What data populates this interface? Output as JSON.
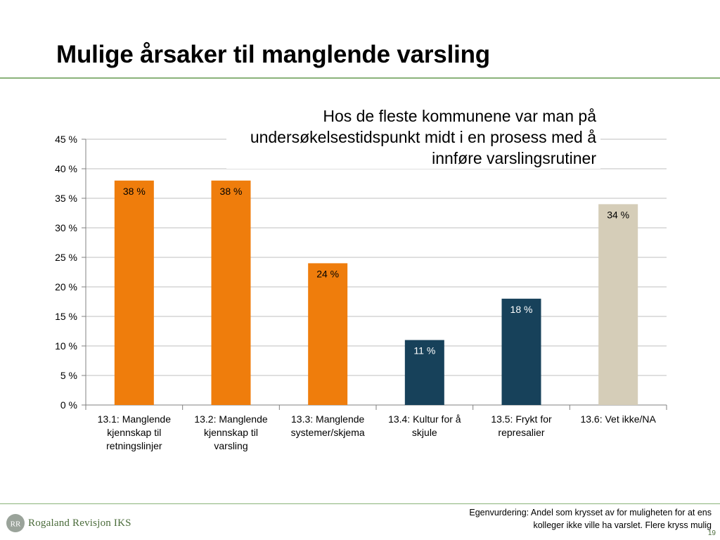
{
  "slide": {
    "title": "Mulige årsaker til manglende varsling",
    "callout": "Hos de fleste kommunene var man på undersøkelsestidspunkt midt i en prosess med å innføre varslingsrutiner",
    "footnote_line1": "Egenvurdering: Andel som krysset av for muligheten for at ens",
    "footnote_line2": "kolleger ikke ville ha varslet. Flere kryss mulig",
    "page_number": "19",
    "logo_text": "Rogaland Revisjon IKS",
    "logo_initials": "RR"
  },
  "colors": {
    "orange": "#ef7d0c",
    "navy": "#17415a",
    "beige": "#d5cdb8",
    "gridline": "#bfbfbf",
    "brand_green": "#8ab37a"
  },
  "chart_data": {
    "type": "bar",
    "categories": [
      [
        "13.1: Manglende",
        "kjennskap til",
        "retningslinjer"
      ],
      [
        "13.2: Manglende",
        "kjennskap til",
        "varsling"
      ],
      [
        "13.3: Manglende",
        "systemer/skjema"
      ],
      [
        "13.4: Kultur for å",
        "skjule"
      ],
      [
        "13.5: Frykt for",
        "represalier"
      ],
      [
        "13.6: Vet ikke/NA"
      ]
    ],
    "values": [
      38,
      38,
      24,
      11,
      18,
      34
    ],
    "value_labels": [
      "38 %",
      "38 %",
      "24 %",
      "11 %",
      "18 %",
      "34 %"
    ],
    "bar_colors": [
      "orange",
      "orange",
      "orange",
      "navy",
      "navy",
      "beige"
    ],
    "label_colors": [
      "#000000",
      "#000000",
      "#000000",
      "#ffffff",
      "#ffffff",
      "#000000"
    ],
    "ylim": [
      0,
      45
    ],
    "yticks": [
      0,
      5,
      10,
      15,
      20,
      25,
      30,
      35,
      40,
      45
    ],
    "ytick_labels": [
      "0 %",
      "5 %",
      "10 %",
      "15 %",
      "20 %",
      "25 %",
      "30 %",
      "35 %",
      "40 %",
      "45 %"
    ],
    "grid": true,
    "legend": "none"
  }
}
